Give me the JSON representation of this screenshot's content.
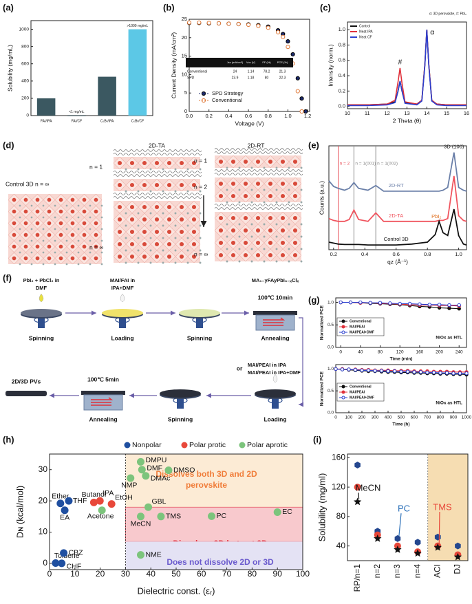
{
  "chart_data": [
    {
      "type": "bar",
      "panel": "(a)",
      "y_label": "Solubility (mg/mL)",
      "categories": [
        "FAI/IPA",
        "FAI/CF",
        "CₛBr/IPA",
        "CₛBr/CF"
      ],
      "values": [
        200,
        1,
        450,
        1000
      ],
      "value_labels": [
        null,
        "<1 mg/mL",
        null,
        ">1000 mg/mL"
      ],
      "colors": [
        "#3b5861",
        "#3b5861",
        "#3b5861",
        "#5cc8e6"
      ],
      "ylim": [
        0,
        1100
      ],
      "yticks": [
        0,
        200,
        400,
        600,
        800,
        1000
      ]
    },
    {
      "type": "scatter",
      "panel": "(b)",
      "x_label": "Voltage (V)",
      "y_label": "Current Density (mA/cm²)",
      "x": [
        0,
        0.1,
        0.2,
        0.3,
        0.4,
        0.5,
        0.6,
        0.7,
        0.8,
        0.9,
        0.95,
        1.0,
        1.05,
        1.1,
        1.14,
        1.18
      ],
      "series": [
        {
          "name": "SPD Strategy",
          "color": "#1c2a6b",
          "values": [
            24,
            24,
            23.9,
            23.9,
            23.8,
            23.7,
            23.6,
            23.4,
            23,
            22,
            21,
            19,
            15.5,
            9,
            3.5,
            0
          ]
        },
        {
          "name": "Conventional",
          "color": "#e07a3a",
          "values": [
            24.1,
            24.1,
            24,
            23.9,
            23.8,
            23.7,
            23.5,
            23.2,
            22.7,
            21.5,
            20.2,
            17.5,
            13,
            5.5,
            0,
            null
          ]
        }
      ],
      "table": {
        "columns": [
          "Jsc (mA/cm²)",
          "Voc (V)",
          "FF (%)",
          "PCE (%)"
        ],
        "rows": [
          {
            "name": "Conventional",
            "cells": [
              24,
              1.14,
              78.2,
              21.3
            ]
          },
          {
            "name": "SPD",
            "cells": [
              23.9,
              1.18,
              80,
              22.3
            ]
          }
        ]
      },
      "xlim": [
        0,
        1.22
      ],
      "xticks": [
        {
          "value": 0,
          "label": "0.0"
        },
        0.2,
        0.4,
        0.6,
        0.8,
        {
          "value": 1,
          "label": "1.0"
        },
        1.2
      ],
      "ylim": [
        0,
        25
      ],
      "yticks": [
        0,
        5,
        10,
        15,
        20,
        25
      ]
    },
    {
      "type": "line",
      "panel": "(c)",
      "x_label": "2 Theta (θ)",
      "y_label": "Intensity (norm.)",
      "note": "α: 3D perovskite, #: PbI₂",
      "peak_labels": [
        {
          "text": "#",
          "x": 12.65
        },
        {
          "text": "α",
          "x": 14.0
        }
      ],
      "x": [
        10,
        11,
        12,
        12.4,
        12.55,
        12.65,
        12.75,
        12.9,
        13.5,
        13.75,
        13.9,
        14.0,
        14.1,
        14.25,
        14.5,
        15,
        16
      ],
      "series": [
        {
          "name": "Control",
          "color": "#111111",
          "values": [
            0.02,
            0.02,
            0.03,
            0.06,
            0.2,
            0.33,
            0.2,
            0.05,
            0.03,
            0.08,
            0.55,
            1.0,
            0.55,
            0.08,
            0.03,
            0.02,
            0.02
          ]
        },
        {
          "name": "Neat IPA",
          "color": "#e0303a",
          "values": [
            0.02,
            0.02,
            0.03,
            0.08,
            0.32,
            0.5,
            0.3,
            0.06,
            0.03,
            0.08,
            0.55,
            1.0,
            0.55,
            0.08,
            0.03,
            0.02,
            0.02
          ]
        },
        {
          "name": "Neat CF",
          "color": "#2a3fd0",
          "values": [
            0.01,
            0.01,
            0.02,
            0.05,
            0.2,
            0.33,
            0.2,
            0.04,
            0.02,
            0.07,
            0.53,
            1.0,
            0.53,
            0.07,
            0.02,
            0.01,
            0.01
          ]
        }
      ],
      "xlim": [
        10,
        16
      ],
      "xticks": [
        10,
        11,
        12,
        13,
        14,
        15,
        16
      ],
      "ylim": [
        -0.03,
        1.1
      ],
      "yticks": [
        {
          "value": 0,
          "label": "0.0"
        },
        0.2,
        0.4,
        0.6,
        0.8,
        {
          "value": 1,
          "label": "1.0"
        }
      ]
    },
    {
      "type": "line",
      "panel": "(e)",
      "x_label": "qz (Å⁻¹)",
      "y_label": "Counts (a.u.)",
      "reference_lines": [
        {
          "x": 0.23,
          "label": "n = 2",
          "color": "#e8505a"
        },
        {
          "x": 0.33,
          "label": "n = 1(001)",
          "color": "#8a8a8a"
        },
        {
          "x": 0.47,
          "label": "n = 1(002)",
          "color": "#8a8a8a"
        }
      ],
      "peak_labels": [
        {
          "text": "3D (100)",
          "x": 0.97,
          "color": "#222222"
        },
        {
          "text": "PbI₂",
          "x": 0.875,
          "color": "#e07020"
        }
      ],
      "x": [
        0.17,
        0.2,
        0.23,
        0.27,
        0.3,
        0.33,
        0.36,
        0.42,
        0.47,
        0.52,
        0.6,
        0.7,
        0.8,
        0.85,
        0.875,
        0.9,
        0.93,
        0.97,
        1.0,
        1.03,
        1.05
      ],
      "series": [
        {
          "name": "2D-RT",
          "color": "#6a7fa8",
          "values": [
            7.3,
            6.7,
            6.5,
            6.3,
            6.5,
            7.1,
            6.5,
            6.3,
            6.8,
            6.2,
            6.2,
            6.2,
            6.2,
            6.2,
            6.2,
            6.3,
            6.6,
            10.3,
            6.6,
            6.3,
            6.2
          ]
        },
        {
          "name": "2D-TA",
          "color": "#f0555f",
          "values": [
            3.3,
            3.1,
            3.0,
            3.0,
            3.2,
            4.2,
            3.2,
            3.0,
            3.9,
            3.0,
            3.0,
            3.0,
            3.0,
            3.0,
            3.1,
            3.1,
            3.3,
            7.8,
            3.6,
            3.1,
            3.0
          ]
        },
        {
          "name": "Control 3D",
          "color": "#111111",
          "values": [
            0.8,
            0.7,
            0.6,
            0.55,
            0.55,
            0.55,
            0.55,
            0.5,
            0.5,
            0.5,
            0.5,
            0.6,
            0.8,
            1.6,
            3.0,
            1.8,
            1.5,
            4.3,
            1.5,
            0.6,
            0.5
          ]
        }
      ],
      "xlim": [
        0.17,
        1.05
      ],
      "xticks": [
        0.2,
        0.4,
        0.6,
        0.8,
        {
          "value": 1,
          "label": "1.0"
        }
      ],
      "ylim": [
        0,
        11
      ]
    },
    {
      "type": "line",
      "panel": "(g)",
      "x_label": "Time (min)",
      "y_label": "Normalized PCE",
      "note": "NiOx as HTL",
      "x": [
        0,
        20,
        40,
        60,
        80,
        100,
        120,
        140,
        160,
        180,
        200,
        220,
        240
      ],
      "series": [
        {
          "name": "Conventional",
          "color": "#111111",
          "values": [
            1,
            1,
            0.99,
            0.98,
            0.97,
            0.96,
            0.95,
            0.93,
            0.91,
            0.9,
            0.88,
            0.87,
            0.86
          ]
        },
        {
          "name": "MAI/PEAI",
          "color": "#e0303a",
          "values": [
            1,
            1,
            0.99,
            0.99,
            0.98,
            0.97,
            0.96,
            0.95,
            0.94,
            0.94,
            0.93,
            0.93,
            0.92
          ]
        },
        {
          "name": "MAI/PEAI+DMF",
          "color": "#2a3fd0",
          "values": [
            1,
            1,
            1,
            0.99,
            0.99,
            0.98,
            0.97,
            0.97,
            0.96,
            0.95,
            0.95,
            0.94,
            0.94
          ]
        }
      ],
      "xlim": [
        -10,
        255
      ],
      "xticks": [
        0,
        40,
        80,
        120,
        160,
        200,
        240
      ],
      "ylim": [
        0,
        1.1
      ],
      "yticks": [
        {
          "value": 0,
          "label": "0.0"
        },
        0.5,
        {
          "value": 1,
          "label": "1.0"
        }
      ]
    },
    {
      "type": "line",
      "x_label": "Time (h)",
      "y_label": "Normalized PCE",
      "note": "NiOx as HTL",
      "x": [
        0,
        50,
        100,
        150,
        200,
        250,
        300,
        350,
        400,
        450,
        500,
        550,
        600,
        650,
        700,
        750,
        800,
        850,
        900,
        950,
        1000
      ],
      "series": [
        {
          "name": "Conventional",
          "color": "#111111",
          "values": [
            1,
            0.99,
            0.98,
            0.97,
            0.96,
            0.95,
            0.95,
            0.94,
            0.93,
            0.93,
            0.92,
            0.92,
            0.91,
            0.91,
            0.9,
            0.9,
            0.89,
            0.89,
            0.88,
            0.88,
            0.87
          ]
        },
        {
          "name": "MAI/PEAI",
          "color": "#e0303a",
          "values": [
            1,
            1,
            0.99,
            0.99,
            0.98,
            0.98,
            0.97,
            0.97,
            0.97,
            0.96,
            0.96,
            0.96,
            0.95,
            0.95,
            0.95,
            0.94,
            0.94,
            0.94,
            0.93,
            0.93,
            0.93
          ]
        },
        {
          "name": "MAI/PEAI+DMF",
          "color": "#2a3fd0",
          "values": [
            1,
            0.99,
            0.99,
            0.98,
            0.97,
            0.97,
            0.96,
            0.96,
            0.95,
            0.95,
            0.94,
            0.94,
            0.93,
            0.93,
            0.92,
            0.92,
            0.91,
            0.91,
            0.9,
            0.9,
            0.9
          ]
        }
      ],
      "xlim": [
        0,
        1000
      ],
      "xticks": [
        0,
        100,
        200,
        300,
        400,
        500,
        600,
        700,
        800,
        900,
        1000
      ],
      "ylim": [
        0,
        1.1
      ],
      "yticks": [
        {
          "value": 0,
          "label": "0.0"
        },
        0.5,
        {
          "value": 1,
          "label": "1.0"
        }
      ]
    },
    {
      "type": "scatter",
      "panel": "(h)",
      "x_label": "Dielectric const. (εᵣ)",
      "y_label": "Dɴ (kcal/mol)",
      "divider_x": 30,
      "regions": [
        {
          "label": [
            "Dissolves both 3D and 2D",
            "perovskite"
          ],
          "from": 18,
          "to": 35,
          "fill": "#fcebd5",
          "text_color": "#f07d3a"
        },
        {
          "label": [
            "Dissolves 2D but not 3D"
          ],
          "from": 7,
          "to": 18,
          "fill": "#f8c9cd",
          "text_color": "#e0303f"
        },
        {
          "label": [
            "Does not dissolve 2D or 3D"
          ],
          "from": -2,
          "to": 7,
          "fill": "#e4e2f4",
          "text_color": "#6a5acd"
        }
      ],
      "series": [
        {
          "name": "Nonpolar",
          "color": "#1f4fa0",
          "labels": [
            "Ether",
            "THF",
            "EA",
            "Toluene",
            "CBZ",
            "CHF"
          ],
          "x": [
            4.3,
            7.6,
            6,
            2.4,
            5.6,
            4.8
          ],
          "values": [
            19.2,
            20,
            17,
            0.1,
            3.3,
            0
          ]
        },
        {
          "name": "Polar protic",
          "color": "#e8483a",
          "labels": [
            "Butanol",
            "IPA",
            "EtOH"
          ],
          "x": [
            17.5,
            19.9,
            24.5
          ],
          "values": [
            19.5,
            20,
            19
          ]
        },
        {
          "name": "Polar aprotic",
          "color": "#7cc47c",
          "labels": [
            "Acetone",
            "DMPU",
            "DMF",
            "DMAc",
            "NMP",
            "DMSO",
            "GBL",
            "TMS",
            "MeCN",
            "PC",
            "EC",
            "NME"
          ],
          "x": [
            20.7,
            36,
            36.5,
            38,
            32,
            47,
            39,
            44,
            36,
            64,
            90,
            36
          ],
          "values": [
            17,
            32.5,
            30,
            28,
            27.3,
            29.8,
            18,
            15,
            15,
            15.1,
            16.4,
            2.7
          ]
        }
      ],
      "xlim": [
        0,
        100
      ],
      "xticks": [
        0,
        10,
        20,
        30,
        40,
        50,
        60,
        70,
        80,
        90,
        100
      ],
      "ylim": [
        -2,
        35
      ],
      "yticks": [
        0,
        10,
        20,
        30
      ]
    },
    {
      "type": "scatter",
      "panel": "(i)",
      "y_label": "Solubility (mg/ml)",
      "categories": [
        "RP/n=1",
        "n=2",
        "n=3",
        "n=4",
        "ACI",
        "DJ"
      ],
      "highlight": {
        "from": "ACI",
        "to": "DJ",
        "fill": "#f6ddb2"
      },
      "series": [
        {
          "marker": "hexagon",
          "color": "#24478f",
          "values": [
            150,
            60,
            50,
            45,
            52,
            40
          ]
        },
        {
          "marker": "circle",
          "color": "#e8483a",
          "values": [
            120,
            55,
            40,
            32,
            40,
            28
          ]
        },
        {
          "marker": "star",
          "color": "#111111",
          "values": [
            100,
            50,
            35,
            30,
            38,
            25
          ]
        }
      ],
      "annotations": [
        {
          "text": "MeCN",
          "color": "#111111"
        },
        {
          "text": "PC",
          "color": "#2a6fb8"
        },
        {
          "text": "TMS",
          "color": "#e8483a"
        }
      ],
      "ylim": [
        20,
        165
      ],
      "yticks": [
        40,
        80,
        120,
        160
      ]
    }
  ],
  "diagram_d": {
    "panel": "(d)",
    "control": "Control 3D n = ∞",
    "ta_title": "2D-TA",
    "rt_title": "2D-RT",
    "ta_levels": [
      "n = 1",
      "n = ∞"
    ],
    "rt_levels": [
      "n = 1",
      "n = 2",
      "n = ∞"
    ]
  },
  "diagram_f": {
    "panel": "(f)",
    "steps": [
      {
        "label": "Spinning",
        "note": [
          "PbI₂ + PbCl₂ in",
          "DMF"
        ]
      },
      {
        "label": "Loading",
        "note": [
          "MAI/FAI in",
          "IPA+DMF"
        ]
      },
      {
        "label": "Spinning"
      },
      {
        "label": "Annealing",
        "note": [
          "MA₁₋yFAyPbI₃₋ₓClₓ"
        ],
        "condition": "100℃ 10min"
      },
      {
        "label": "Loading",
        "note": [
          "MAI/PEAI in IPA",
          "MAI/PEAI in IPA+DMF"
        ],
        "or": "or"
      },
      {
        "label": "Spinning"
      },
      {
        "label": "Annealing",
        "condition": "100℃ 5min"
      }
    ],
    "product": "2D/3D PVs"
  }
}
